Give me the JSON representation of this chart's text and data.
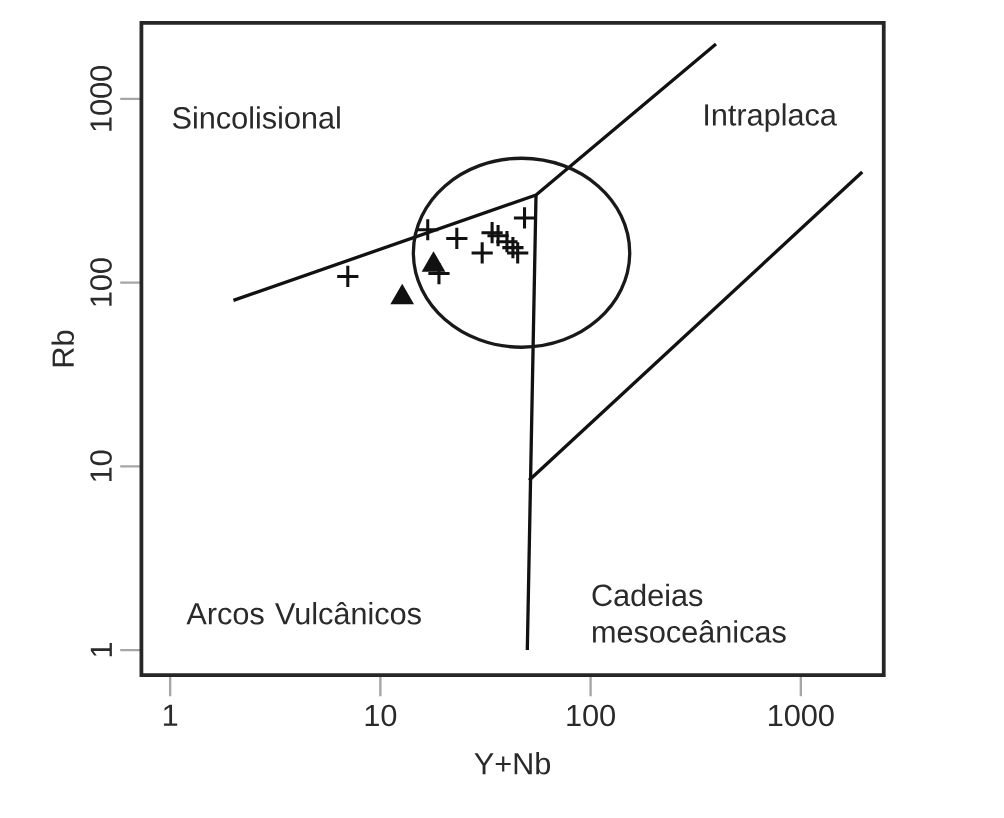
{
  "chart_data": {
    "type": "scatter",
    "xlabel": "Y+Nb",
    "ylabel": "Rb",
    "log": "xy",
    "xlim": [
      0.73,
      2480
    ],
    "ylim": [
      0.73,
      2590
    ],
    "xticks": [
      1,
      10,
      100,
      1000
    ],
    "yticks": [
      1,
      10,
      100,
      1000
    ],
    "grid": false,
    "annotations": [
      "Sincolisional",
      "Intraplaca",
      "Arcos Vulcânicos",
      "Cadeias mesoceânicas"
    ],
    "series": [
      {
        "marker": "cross",
        "color": "#111111",
        "x": [
          7.0,
          16.8,
          23.1,
          30.5,
          34,
          36.3,
          40,
          42.7,
          45,
          48.5,
          19.0
        ],
        "values": [
          108,
          194,
          174,
          145,
          187,
          180,
          167,
          155,
          145,
          225,
          112
        ]
      },
      {
        "marker": "triangle",
        "color": "#111111",
        "x": [
          12.7,
          17.9
        ],
        "values": [
          83,
          125
        ]
      },
      {
        "type": "line",
        "marker": "none",
        "line_style": "solid",
        "color": "#111111",
        "x": [
          2,
          55,
          395
        ],
        "values": [
          80,
          300,
          1990
        ]
      },
      {
        "type": "line",
        "marker": "none",
        "line_style": "solid",
        "color": "#111111",
        "x": [
          50,
          55
        ],
        "values": [
          1,
          300
        ]
      },
      {
        "type": "line",
        "marker": "none",
        "line_style": "solid",
        "color": "#111111",
        "x": [
          51,
          1960
        ],
        "values": [
          8.4,
          400
        ]
      }
    ]
  }
}
